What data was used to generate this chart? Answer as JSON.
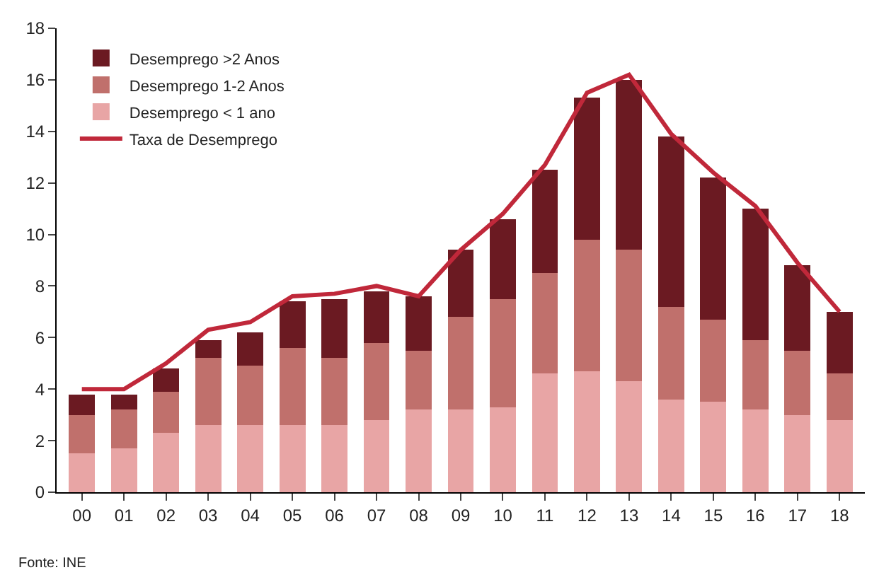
{
  "chart_data": {
    "type": "bar",
    "stacked": true,
    "categories": [
      "00",
      "01",
      "02",
      "03",
      "04",
      "05",
      "06",
      "07",
      "08",
      "09",
      "10",
      "11",
      "12",
      "13",
      "14",
      "15",
      "16",
      "17",
      "18"
    ],
    "series": [
      {
        "name": "Desemprego < 1 ano",
        "color": "#e8a5a5",
        "values": [
          1.5,
          1.7,
          2.3,
          2.6,
          2.6,
          2.6,
          2.6,
          2.8,
          3.2,
          3.2,
          3.3,
          4.6,
          4.7,
          4.3,
          3.6,
          3.5,
          3.2,
          3.0,
          2.8
        ]
      },
      {
        "name": "Desemprego 1-2 Anos",
        "color": "#c0706c",
        "values": [
          1.5,
          1.5,
          1.6,
          2.6,
          2.3,
          3.0,
          2.6,
          3.0,
          2.3,
          3.6,
          4.2,
          3.9,
          5.1,
          5.1,
          3.6,
          3.2,
          2.7,
          2.5,
          1.8
        ]
      },
      {
        "name": "Desemprego >2 Anos",
        "color": "#6b1a22",
        "values": [
          0.8,
          0.6,
          0.9,
          0.7,
          1.3,
          1.8,
          2.3,
          2.0,
          2.1,
          2.6,
          3.1,
          4.0,
          5.5,
          6.6,
          6.6,
          5.5,
          5.1,
          3.3,
          2.4
        ]
      },
      {
        "name": "Taxa de Desemprego",
        "type": "line",
        "color": "#c0283a",
        "values": [
          4.0,
          4.0,
          5.0,
          6.3,
          6.6,
          7.6,
          7.7,
          8.0,
          7.6,
          9.4,
          10.8,
          12.7,
          15.5,
          16.2,
          13.9,
          12.4,
          11.1,
          8.9,
          7.0
        ]
      }
    ],
    "ylim": [
      0,
      18
    ],
    "yticks": [
      0,
      2,
      4,
      6,
      8,
      10,
      12,
      14,
      16,
      18
    ],
    "legend": "top left",
    "marker": "none",
    "line_style": "solid",
    "annotations": [
      "Fonte: INE"
    ]
  }
}
